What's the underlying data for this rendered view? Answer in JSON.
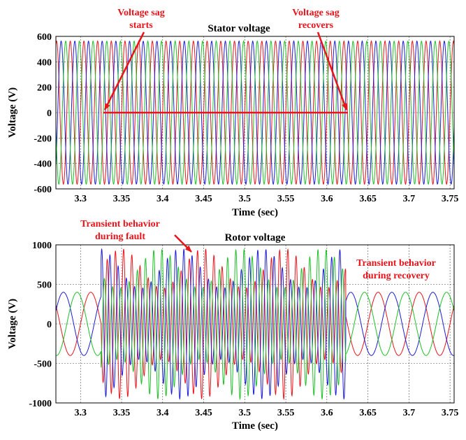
{
  "chart_data": [
    {
      "type": "line",
      "title": "Stator voltage",
      "xlabel": "Time (sec)",
      "ylabel": "Voltage (V)",
      "xlim": [
        3.27,
        3.755
      ],
      "ylim": [
        -600,
        600
      ],
      "xticks": [
        3.3,
        3.35,
        3.4,
        3.45,
        3.5,
        3.55,
        3.6,
        3.65,
        3.7,
        3.75
      ],
      "xtick_labels": [
        "3.3",
        "3.35",
        "3.4",
        "3.45",
        "3.5",
        "3.55",
        "3.6",
        "3.65",
        "3.7",
        "3.75"
      ],
      "yticks": [
        -600,
        -400,
        -200,
        0,
        200,
        400,
        600
      ],
      "ytick_labels": [
        "-600",
        "-400",
        "-200",
        "0",
        "200",
        "400",
        "600"
      ],
      "grid": true,
      "series": [
        {
          "color": "#e8141b",
          "phase_deg": 0,
          "segments": [
            {
              "t_start": 3.27,
              "t_end": 3.325,
              "amplitude": 563,
              "frequency_hz": 60
            },
            {
              "t_start": 3.325,
              "t_end": 3.623,
              "amplitude": 563,
              "frequency_hz": 60
            },
            {
              "t_start": 3.623,
              "t_end": 3.755,
              "amplitude": 563,
              "frequency_hz": 60
            }
          ]
        },
        {
          "color": "#1c1cd6",
          "phase_deg": -120,
          "segments": [
            {
              "t_start": 3.27,
              "t_end": 3.325,
              "amplitude": 563,
              "frequency_hz": 60
            },
            {
              "t_start": 3.325,
              "t_end": 3.623,
              "amplitude": 563,
              "frequency_hz": 60
            },
            {
              "t_start": 3.623,
              "t_end": 3.755,
              "amplitude": 563,
              "frequency_hz": 60
            }
          ]
        },
        {
          "color": "#1fbf28",
          "phase_deg": 120,
          "segments": [
            {
              "t_start": 3.27,
              "t_end": 3.325,
              "amplitude": 563,
              "frequency_hz": 60
            },
            {
              "t_start": 3.325,
              "t_end": 3.623,
              "amplitude": 563,
              "frequency_hz": 60
            },
            {
              "t_start": 3.623,
              "t_end": 3.755,
              "amplitude": 563,
              "frequency_hz": 60
            }
          ]
        }
      ],
      "annotations": [
        {
          "text": [
            "Voltage sag",
            "starts"
          ],
          "color": "#e8141b",
          "arrow_to": [
            3.325,
            0
          ]
        },
        {
          "text": [
            "Voltage sag",
            "recovers"
          ],
          "color": "#e8141b",
          "arrow_to": [
            3.623,
            0
          ]
        },
        {
          "type": "line",
          "color": "#e8141b",
          "from": [
            3.325,
            0
          ],
          "to": [
            3.623,
            0
          ]
        }
      ]
    },
    {
      "type": "line",
      "title": "Rotor voltage",
      "xlabel": "Time (sec)",
      "ylabel": "Voltage (V)",
      "xlim": [
        3.27,
        3.755
      ],
      "ylim": [
        -1000,
        1000
      ],
      "xticks": [
        3.3,
        3.35,
        3.4,
        3.45,
        3.5,
        3.55,
        3.6,
        3.65,
        3.7,
        3.75
      ],
      "xtick_labels": [
        "3.3",
        "3.35",
        "3.4",
        "3.45",
        "3.5",
        "3.55",
        "3.6",
        "3.65",
        "3.7",
        "3.75"
      ],
      "yticks": [
        -1000,
        -500,
        0,
        500,
        1000
      ],
      "ytick_labels": [
        "-1000",
        "-500",
        "0",
        "500",
        "1000"
      ],
      "grid": true,
      "series": [
        {
          "color": "#e8141b",
          "phase_deg": 0,
          "segments": [
            {
              "t_start": 3.27,
              "t_end": 3.325,
              "amplitude": 400,
              "frequency_hz": 20
            },
            {
              "t_start": 3.325,
              "t_end": 3.623,
              "amplitude": 450,
              "frequency_hz": 100,
              "transient_peak": 950
            },
            {
              "t_start": 3.623,
              "t_end": 3.755,
              "amplitude": 400,
              "frequency_hz": 20
            }
          ]
        },
        {
          "color": "#1c1cd6",
          "phase_deg": -120,
          "segments": [
            {
              "t_start": 3.27,
              "t_end": 3.325,
              "amplitude": 400,
              "frequency_hz": 20
            },
            {
              "t_start": 3.325,
              "t_end": 3.623,
              "amplitude": 450,
              "frequency_hz": 100,
              "transient_peak": 950
            },
            {
              "t_start": 3.623,
              "t_end": 3.755,
              "amplitude": 400,
              "frequency_hz": 20
            }
          ]
        },
        {
          "color": "#1fbf28",
          "phase_deg": 120,
          "segments": [
            {
              "t_start": 3.27,
              "t_end": 3.325,
              "amplitude": 400,
              "frequency_hz": 20
            },
            {
              "t_start": 3.325,
              "t_end": 3.623,
              "amplitude": 450,
              "frequency_hz": 100,
              "transient_peak": 950
            },
            {
              "t_start": 3.623,
              "t_end": 3.755,
              "amplitude": 400,
              "frequency_hz": 20
            }
          ]
        }
      ],
      "annotations": [
        {
          "text": [
            "Transient behavior",
            "during fault"
          ],
          "color": "#e8141b",
          "arrow_to": [
            3.44,
            920
          ]
        },
        {
          "text": [
            "Transient behavior",
            "during recovery"
          ],
          "color": "#e8141b"
        }
      ]
    }
  ]
}
